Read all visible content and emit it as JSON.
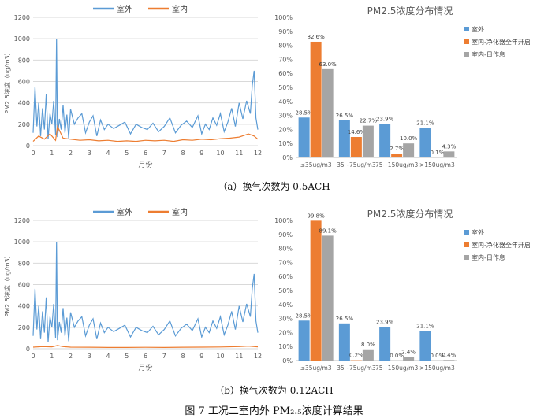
{
  "figure_caption": "图 7  工况二室内外 PM₂.₅浓度计算结果",
  "subcaptions": [
    "（a）换气次数为 0.5ACH",
    "（b）换气次数为 0.12ACH"
  ],
  "colors": {
    "blue": "#5B9BD5",
    "orange": "#ED7D31",
    "gray": "#A5A5A5",
    "grid": "#d9d9d9",
    "axis": "#bfbfbf"
  },
  "chart_data": [
    {
      "type": "line",
      "panel": "a",
      "title": "",
      "xlabel": "月份",
      "ylabel": "PM2.5浓度（ug/m3）",
      "xlim": [
        0,
        12
      ],
      "ylim": [
        0,
        1200
      ],
      "xticks": [
        "0",
        "1",
        "2",
        "3",
        "4",
        "5",
        "6",
        "7",
        "8",
        "9",
        "10",
        "11",
        "12"
      ],
      "yticks": [
        "0",
        "200",
        "400",
        "600",
        "800",
        "1000",
        "1200"
      ],
      "legend_position": "top",
      "series": [
        {
          "name": "室外",
          "color": "#5B9BD5",
          "x": [
            0,
            0.1,
            0.2,
            0.3,
            0.4,
            0.5,
            0.6,
            0.7,
            0.8,
            0.9,
            1.0,
            1.1,
            1.2,
            1.25,
            1.3,
            1.4,
            1.5,
            1.6,
            1.7,
            1.8,
            1.9,
            2.0,
            2.2,
            2.4,
            2.6,
            2.8,
            3.0,
            3.2,
            3.4,
            3.6,
            3.8,
            4.0,
            4.3,
            4.6,
            4.9,
            5.2,
            5.5,
            5.8,
            6.1,
            6.4,
            6.7,
            7.0,
            7.3,
            7.6,
            7.9,
            8.2,
            8.5,
            8.8,
            9.0,
            9.2,
            9.4,
            9.6,
            9.8,
            10.0,
            10.2,
            10.4,
            10.6,
            10.8,
            11.0,
            11.2,
            11.4,
            11.6,
            11.7,
            11.8,
            11.9,
            12.0
          ],
          "y": [
            120,
            550,
            180,
            400,
            90,
            350,
            150,
            480,
            60,
            300,
            200,
            420,
            100,
            1000,
            80,
            250,
            150,
            380,
            120,
            290,
            70,
            340,
            200,
            260,
            300,
            120,
            220,
            280,
            90,
            240,
            150,
            200,
            160,
            190,
            220,
            110,
            200,
            170,
            150,
            210,
            130,
            180,
            260,
            120,
            190,
            230,
            170,
            280,
            110,
            200,
            150,
            260,
            190,
            300,
            130,
            220,
            350,
            180,
            400,
            250,
            420,
            300,
            560,
            700,
            260,
            150
          ]
        },
        {
          "name": "室内",
          "color": "#ED7D31",
          "x": [
            0,
            0.3,
            0.6,
            0.9,
            1.2,
            1.3,
            1.6,
            2.0,
            2.5,
            3.0,
            3.5,
            4.0,
            4.5,
            5.0,
            5.5,
            6.0,
            6.5,
            7.0,
            7.5,
            8.0,
            8.5,
            9.0,
            9.5,
            10.0,
            10.5,
            11.0,
            11.5,
            11.8,
            12.0
          ],
          "y": [
            40,
            90,
            60,
            110,
            50,
            180,
            70,
            60,
            50,
            55,
            45,
            50,
            40,
            45,
            40,
            50,
            45,
            50,
            40,
            55,
            50,
            60,
            55,
            65,
            70,
            80,
            110,
            90,
            60
          ]
        }
      ]
    },
    {
      "type": "bar",
      "panel": "a",
      "title": "PM2.5浓度分布情况",
      "categories": [
        "≤35ug/m3",
        "35~75ug/m3",
        "75~150ug/m3",
        ">150ug/m3"
      ],
      "ylim": [
        0,
        100
      ],
      "yticks": [
        "0%",
        "10%",
        "20%",
        "30%",
        "40%",
        "50%",
        "60%",
        "70%",
        "80%",
        "90%",
        "100%"
      ],
      "legend_position": "right",
      "series": [
        {
          "name": "室外",
          "color": "#5B9BD5",
          "values": [
            28.5,
            26.5,
            23.9,
            21.1
          ],
          "labels": [
            "28.5%",
            "26.5%",
            "23.9%",
            "21.1%"
          ]
        },
        {
          "name": "室内-净化器全年开启",
          "color": "#ED7D31",
          "values": [
            82.6,
            14.6,
            2.7,
            0.1
          ],
          "labels": [
            "82.6%",
            "14.6%",
            "2.7%",
            "0.1%"
          ]
        },
        {
          "name": "室内-日作息",
          "color": "#A5A5A5",
          "values": [
            63.0,
            22.7,
            10.0,
            4.3
          ],
          "labels": [
            "63.0%",
            "22.7%",
            "10.0%",
            "4.3%"
          ]
        }
      ]
    },
    {
      "type": "line",
      "panel": "b",
      "title": "",
      "xlabel": "月份",
      "ylabel": "PM2.5浓度（ug/m3）",
      "xlim": [
        0,
        12
      ],
      "ylim": [
        0,
        1200
      ],
      "xticks": [
        "0",
        "1",
        "2",
        "3",
        "4",
        "5",
        "6",
        "7",
        "8",
        "9",
        "10",
        "11",
        "12"
      ],
      "yticks": [
        "0",
        "200",
        "400",
        "600",
        "800",
        "1000",
        "1200"
      ],
      "legend_position": "top",
      "series": [
        {
          "name": "室外",
          "color": "#5B9BD5",
          "x": [
            0,
            0.1,
            0.2,
            0.3,
            0.4,
            0.5,
            0.6,
            0.7,
            0.8,
            0.9,
            1.0,
            1.1,
            1.2,
            1.25,
            1.3,
            1.4,
            1.5,
            1.6,
            1.7,
            1.8,
            1.9,
            2.0,
            2.2,
            2.4,
            2.6,
            2.8,
            3.0,
            3.2,
            3.4,
            3.6,
            3.8,
            4.0,
            4.3,
            4.6,
            4.9,
            5.2,
            5.5,
            5.8,
            6.1,
            6.4,
            6.7,
            7.0,
            7.3,
            7.6,
            7.9,
            8.2,
            8.5,
            8.8,
            9.0,
            9.2,
            9.4,
            9.6,
            9.8,
            10.0,
            10.2,
            10.4,
            10.6,
            10.8,
            11.0,
            11.2,
            11.4,
            11.6,
            11.7,
            11.8,
            11.9,
            12.0
          ],
          "y": [
            120,
            560,
            180,
            400,
            90,
            350,
            150,
            480,
            60,
            300,
            200,
            420,
            100,
            1000,
            80,
            250,
            150,
            380,
            120,
            290,
            70,
            340,
            200,
            260,
            300,
            120,
            220,
            280,
            90,
            240,
            150,
            200,
            160,
            190,
            220,
            110,
            200,
            170,
            150,
            210,
            130,
            180,
            260,
            120,
            190,
            230,
            170,
            280,
            110,
            200,
            150,
            260,
            190,
            300,
            130,
            220,
            350,
            180,
            400,
            250,
            420,
            300,
            560,
            700,
            260,
            150
          ]
        },
        {
          "name": "室内",
          "color": "#ED7D31",
          "x": [
            0,
            0.5,
            1.0,
            1.3,
            1.6,
            2.0,
            3.0,
            4.0,
            5.0,
            6.0,
            7.0,
            8.0,
            9.0,
            10.0,
            11.0,
            11.5,
            12.0
          ],
          "y": [
            15,
            20,
            18,
            30,
            20,
            15,
            14,
            12,
            12,
            13,
            12,
            14,
            15,
            16,
            20,
            25,
            18
          ]
        }
      ]
    },
    {
      "type": "bar",
      "panel": "b",
      "title": "PM2.5浓度分布情况",
      "categories": [
        "≤35ug/m3",
        "35~75ug/m3",
        "75~150ug/m3",
        ">150ug/m3"
      ],
      "ylim": [
        0,
        100
      ],
      "yticks": [
        "0%",
        "10%",
        "20%",
        "30%",
        "40%",
        "50%",
        "60%",
        "70%",
        "80%",
        "90%",
        "100%"
      ],
      "legend_position": "right",
      "series": [
        {
          "name": "室外",
          "color": "#5B9BD5",
          "values": [
            28.5,
            26.5,
            23.9,
            21.1
          ],
          "labels": [
            "28.5%",
            "26.5%",
            "23.9%",
            "21.1%"
          ]
        },
        {
          "name": "室内-净化器全年开启",
          "color": "#ED7D31",
          "values": [
            99.8,
            0.2,
            0.0,
            0.0
          ],
          "labels": [
            "99.8%",
            "0.2%",
            "0.0%",
            "0.0%"
          ]
        },
        {
          "name": "室内-日作息",
          "color": "#A5A5A5",
          "values": [
            89.1,
            8.0,
            2.4,
            0.4
          ],
          "labels": [
            "89.1%",
            "8.0%",
            "2.4%",
            "0.4%"
          ]
        }
      ]
    }
  ]
}
